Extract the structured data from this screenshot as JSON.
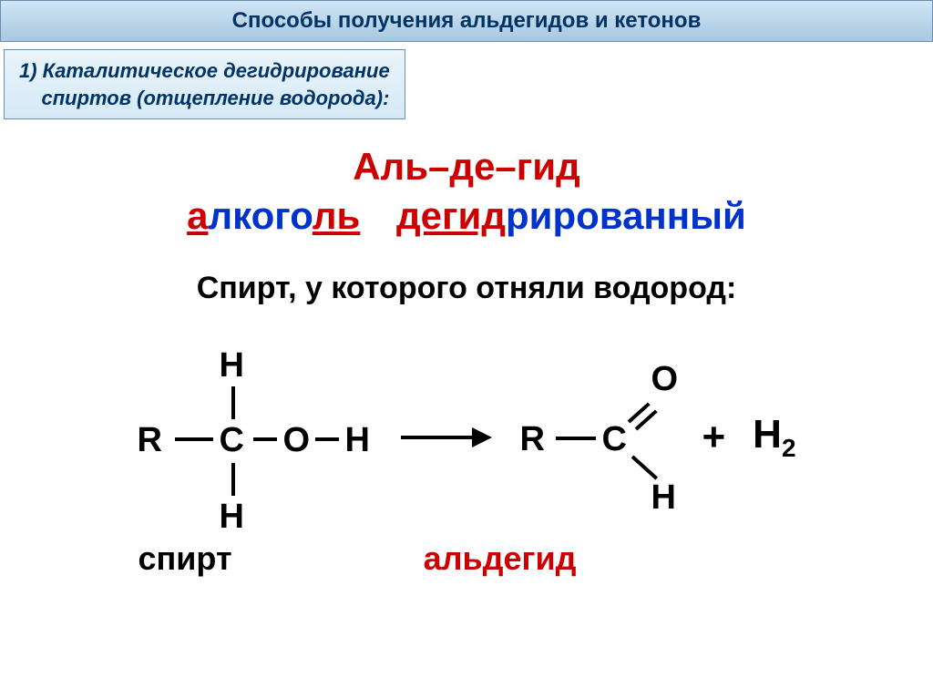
{
  "title": "Способы получения альдегидов и кетонов",
  "subtitle_line1": "1) Каталитическое дегидрирование",
  "subtitle_line2": "спиртов (отщепление водорода):",
  "mnemonic": {
    "top": "Аль–де–гид",
    "word1_a": "а",
    "word1_mid": "лкого",
    "word1_end": "ль",
    "word2_start": "дегид",
    "word2_rest": "рированный"
  },
  "subheading": "Спирт,  у которого отняли водород:",
  "reaction": {
    "alcohol": {
      "R": "R",
      "C": "C",
      "O": "O",
      "H": "H"
    },
    "aldehyde": {
      "R": "R",
      "C": "C",
      "O": "O",
      "H": "H"
    },
    "plus": "+",
    "h2_H": "H",
    "h2_sub": "2"
  },
  "labels": {
    "alcohol": "спирт",
    "aldehyde": "альдегид"
  },
  "colors": {
    "title_bg_top": "#d0e4f5",
    "title_bg_bot": "#a8c8e0",
    "title_border": "#6a8fb0",
    "title_text": "#003366",
    "red": "#cc0000",
    "blue": "#0033cc",
    "black": "#000000",
    "bg": "#ffffff"
  },
  "fonts": {
    "title_size": 24,
    "subtitle_size": 22,
    "mnemonic_size": 42,
    "subheading_size": 34,
    "formula_size": 38,
    "label_size": 36
  }
}
